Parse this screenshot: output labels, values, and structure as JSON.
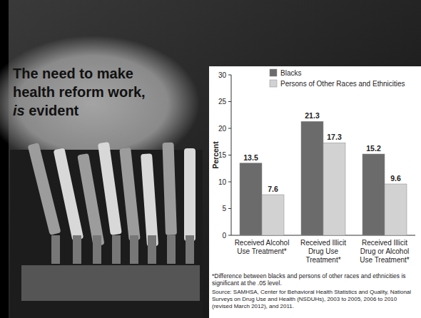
{
  "slide": {
    "title_parts": [
      {
        "text": "The need to make health reform work, "
      },
      {
        "text": "is",
        "italic": true
      },
      {
        "text": " evident"
      }
    ]
  },
  "chart_data": {
    "type": "bar",
    "categories": [
      "Received Alcohol Use Treatment*",
      "Received Illicit Drug Use Treatment*",
      "Received Illicit Drug or Alcohol Use Treatment*"
    ],
    "series": [
      {
        "name": "Blacks",
        "color": "#6b6b6b",
        "values": [
          13.5,
          21.3,
          15.2
        ]
      },
      {
        "name": "Persons of Other Races and Ethnicities",
        "color": "#d2d2d2",
        "values": [
          7.6,
          17.3,
          9.6
        ]
      }
    ],
    "ylabel": "Percent",
    "ylim": [
      0,
      30
    ],
    "yticks": [
      0,
      5,
      10,
      15,
      20,
      25,
      30
    ],
    "grid": false,
    "legend": "upper left",
    "data_labels": true,
    "footnote": "*Difference between blacks and persons of other races and ethnicities is significant at the .05 level.",
    "source": "Source: SAMHSA, Center for Behavioral Health Statistics and Quality, National Surveys on Drug Use and Health (NSDUHs), 2003 to 2005, 2006 to 2010 (revised March 2012), and 2011."
  }
}
